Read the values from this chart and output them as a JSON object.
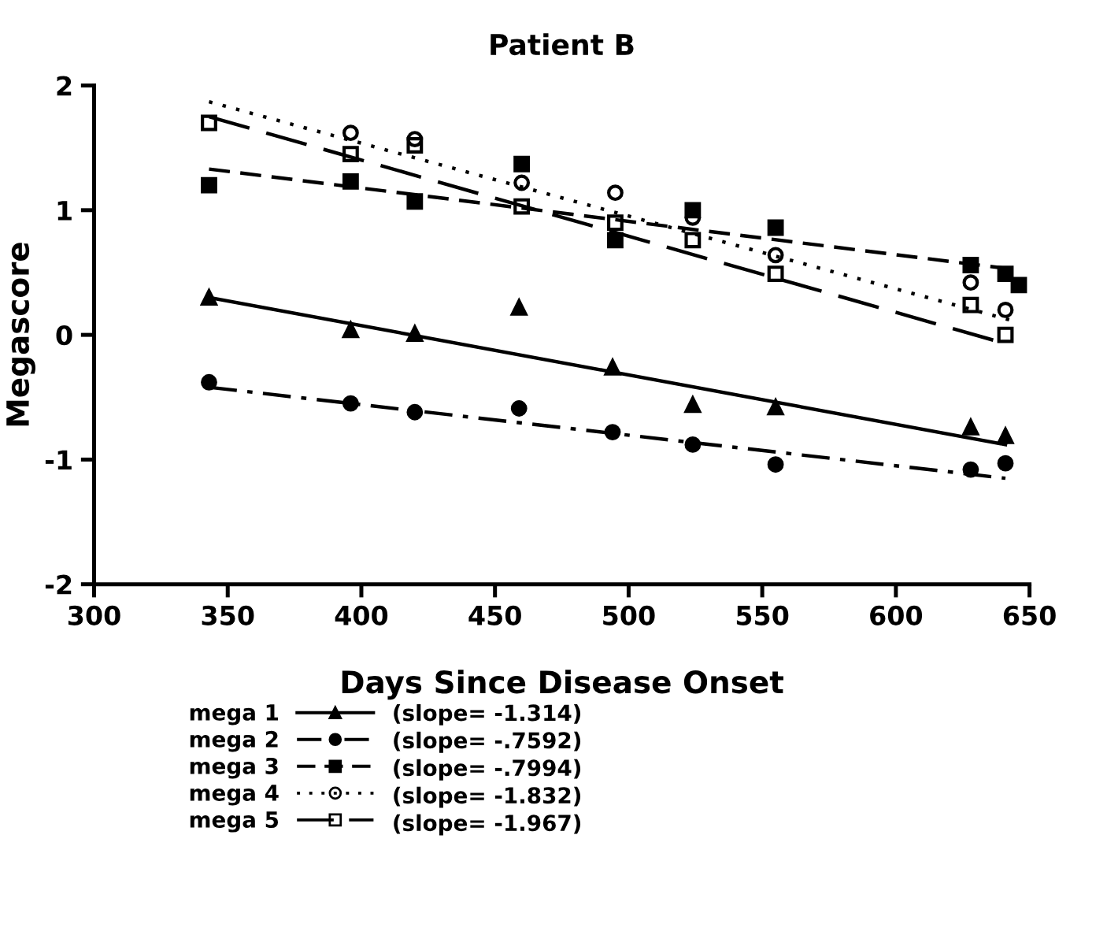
{
  "chart_data": {
    "type": "scatter",
    "title": "Patient B",
    "xlabel": "Days Since Disease Onset",
    "ylabel": "Megascore",
    "xlim": [
      300,
      650
    ],
    "ylim": [
      -2,
      2
    ],
    "xticks": [
      300,
      350,
      400,
      450,
      500,
      550,
      600,
      650
    ],
    "yticks": [
      -2,
      -1,
      0,
      1,
      2
    ],
    "grid": false,
    "legend": "bottom",
    "series": [
      {
        "name": "mega 1",
        "marker": "triangle",
        "color": "#000000",
        "x": [
          343,
          396,
          420,
          459,
          494,
          524,
          555,
          628,
          641
        ],
        "values": [
          0.3,
          0.04,
          0.01,
          0.22,
          -0.26,
          -0.56,
          -0.58,
          -0.74,
          -0.81
        ]
      },
      {
        "name": "mega 2",
        "marker": "circle",
        "color": "#000000",
        "x": [
          343,
          396,
          420,
          459,
          494,
          524,
          555,
          628,
          641
        ],
        "values": [
          -0.38,
          -0.55,
          -0.62,
          -0.59,
          -0.78,
          -0.88,
          -1.04,
          -1.08,
          -1.03
        ]
      },
      {
        "name": "mega 3",
        "marker": "square",
        "color": "#000000",
        "x": [
          343,
          396,
          420,
          460,
          495,
          524,
          555,
          628,
          641,
          646
        ],
        "values": [
          1.2,
          1.23,
          1.07,
          1.37,
          0.76,
          1.0,
          0.86,
          0.56,
          0.49,
          0.4
        ]
      },
      {
        "name": "mega 4",
        "marker": "circle",
        "color": "#000000",
        "x": [
          396,
          420,
          460,
          495,
          524,
          555,
          628,
          641
        ],
        "values": [
          1.62,
          1.57,
          1.22,
          1.14,
          0.94,
          0.64,
          0.42,
          0.2
        ]
      },
      {
        "name": "mega 5",
        "marker": "square",
        "color": "#000000",
        "x": [
          343,
          396,
          420,
          460,
          495,
          524,
          555,
          628,
          641
        ],
        "values": [
          1.7,
          1.45,
          1.52,
          1.03,
          0.9,
          0.76,
          0.49,
          0.24,
          0.0
        ]
      },
      {
        "type": "line",
        "line_style": "solid",
        "color": "#000000",
        "x": [
          343,
          641
        ],
        "values": [
          0.3,
          -0.88
        ]
      },
      {
        "type": "line",
        "line_style": "dashdot",
        "color": "#000000",
        "x": [
          343,
          641
        ],
        "values": [
          -0.42,
          -1.15
        ]
      },
      {
        "type": "line",
        "line_style": "dashed",
        "color": "#000000",
        "x": [
          343,
          646
        ],
        "values": [
          1.33,
          0.52
        ]
      },
      {
        "type": "line",
        "line_style": "dotted",
        "color": "#000000",
        "x": [
          343,
          646
        ],
        "values": [
          1.87,
          0.1
        ]
      },
      {
        "type": "line",
        "line_style": "longdash",
        "color": "#000000",
        "x": [
          343,
          641
        ],
        "values": [
          1.75,
          -0.07
        ]
      }
    ],
    "annotations": [
      "(slope= -1.314)",
      "(slope= -.7592)",
      "(slope= -.7994)",
      "(slope= -1.832)",
      "(slope= -1.967)"
    ]
  }
}
